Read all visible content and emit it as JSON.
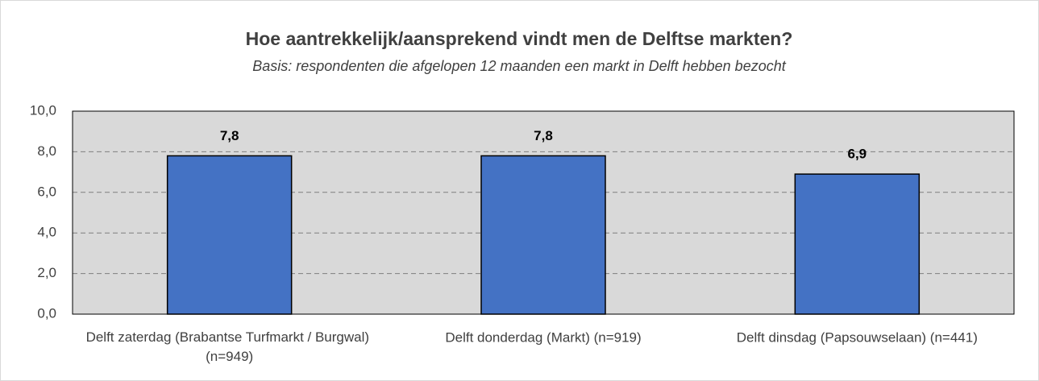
{
  "chart_data": {
    "type": "bar",
    "title": "Hoe aantrekkelijk/aansprekend vindt men de Delftse markten?",
    "subtitle": "Basis: respondenten die afgelopen 12 maanden een markt in Delft hebben bezocht",
    "categories": [
      "Delft zaterdag (Brabantse Turfmarkt / Burgwal) (n=949)",
      "Delft donderdag (Markt) (n=919)",
      "Delft dinsdag (Papsouwselaan) (n=441)"
    ],
    "values": [
      7.8,
      7.8,
      6.9
    ],
    "value_labels": [
      "7,8",
      "7,8",
      "6,9"
    ],
    "color": "#4472c4",
    "ylim": [
      0,
      10
    ],
    "yticks": [
      {
        "value": 0,
        "label": "0,0"
      },
      {
        "value": 2,
        "label": "2,0"
      },
      {
        "value": 4,
        "label": "4,0"
      },
      {
        "value": 6,
        "label": "6,0"
      },
      {
        "value": 8,
        "label": "8,0"
      },
      {
        "value": 10,
        "label": "10,0"
      }
    ],
    "grid": true
  }
}
